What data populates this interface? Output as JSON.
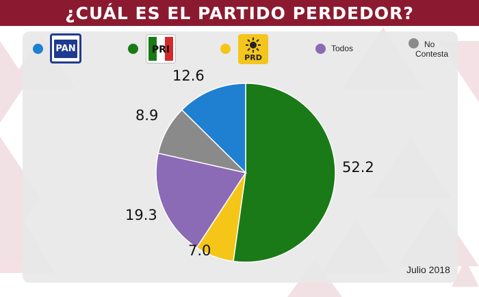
{
  "header": {
    "title": "¿Cuál es el partido perdedor?"
  },
  "legend": {
    "pan": {
      "logo_text": "PAN",
      "color": "#1f7fd1",
      "icon": "pan-logo-icon"
    },
    "pri": {
      "logo_text": "PRI",
      "color": "#1a7a17",
      "icon": "pri-logo-icon"
    },
    "prd": {
      "logo_text": "PRD",
      "color": "#f5c518",
      "icon": "prd-logo-icon"
    },
    "todos": {
      "label": "Todos",
      "color": "#8b6bb5"
    },
    "no_contesta": {
      "label": "No Contesta",
      "line1": "No",
      "line2": "Contesta",
      "color": "#8a8a8a"
    }
  },
  "chart_data": {
    "type": "pie",
    "slices": [
      {
        "name": "PRI",
        "value": 52.2,
        "label": "52.2",
        "color": "#1a7a17"
      },
      {
        "name": "PRD",
        "value": 7.0,
        "label": "7.0",
        "color": "#f5c518"
      },
      {
        "name": "Todos",
        "value": 19.3,
        "label": "19.3",
        "color": "#8b6bb5"
      },
      {
        "name": "No Contesta",
        "value": 8.9,
        "label": "8.9",
        "color": "#8a8a8a"
      },
      {
        "name": "PAN",
        "value": 12.6,
        "label": "12.6",
        "color": "#1f7fd1"
      }
    ],
    "start_angle": "12 o'clock, clockwise"
  },
  "footer": {
    "date": "Julio 2018"
  }
}
